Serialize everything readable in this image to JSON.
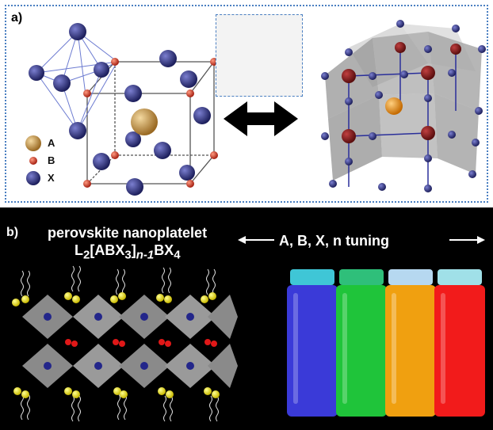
{
  "panel_a": {
    "label": "a)",
    "legend": [
      {
        "symbol": "A",
        "color": "#c9a05a"
      },
      {
        "symbol": "B",
        "color": "#d8422a"
      },
      {
        "symbol": "X",
        "color": "#2b2e7a"
      }
    ]
  },
  "panel_b": {
    "label": "b)",
    "title_line1": "perovskite nanoplatelet",
    "formula": {
      "p1": "L",
      "s1": "2",
      "p2": "[ABX",
      "s2": "3",
      "p3": "]",
      "s3": "n-1",
      "p4": "BX",
      "s4": "4"
    },
    "tuning_text": "A, B, X, n tuning",
    "vials": [
      {
        "name": "blue",
        "color": "#3a3ad8"
      },
      {
        "name": "green",
        "color": "#1fc43a"
      },
      {
        "name": "orange",
        "color": "#f0a010"
      },
      {
        "name": "red",
        "color": "#f21b1b"
      }
    ]
  },
  "colors": {
    "frame": "#4a7fc1",
    "x_atom": "#2b2e7a",
    "b_atom": "#d8422a",
    "a_atom": "#c9a05a"
  }
}
